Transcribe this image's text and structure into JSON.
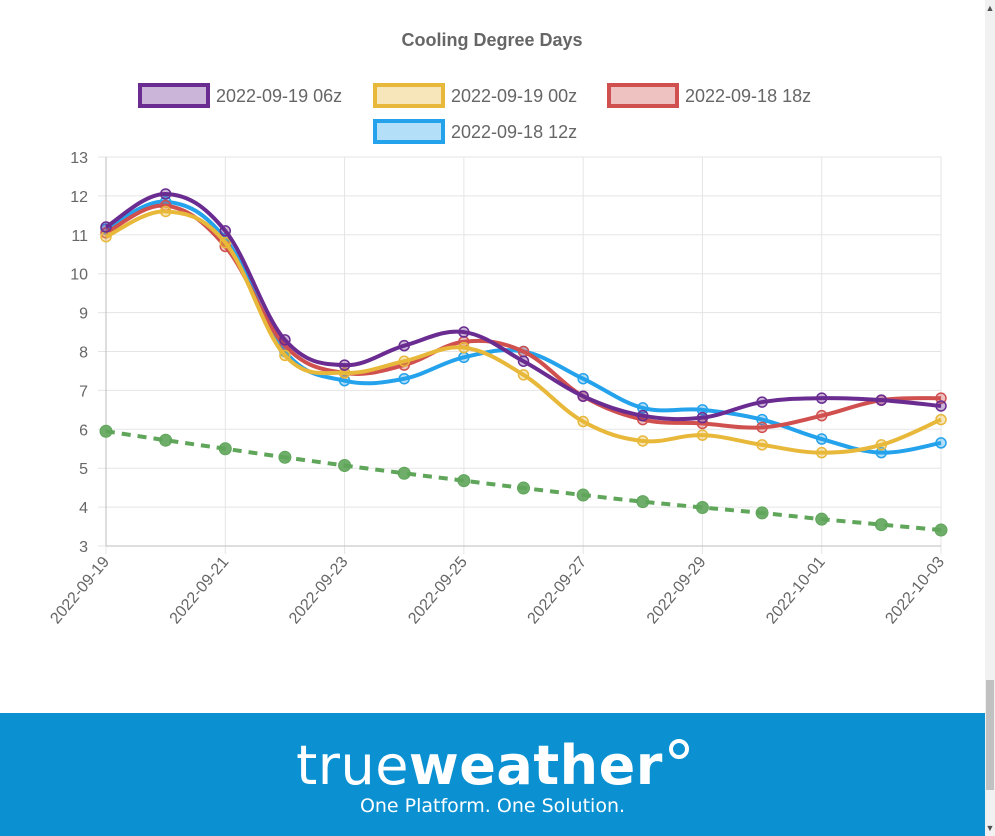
{
  "chart_data": {
    "type": "line",
    "title": "Cooling Degree Days",
    "x": [
      "2022-09-19",
      "2022-09-20",
      "2022-09-21",
      "2022-09-22",
      "2022-09-23",
      "2022-09-24",
      "2022-09-25",
      "2022-09-26",
      "2022-09-27",
      "2022-09-28",
      "2022-09-29",
      "2022-09-30",
      "2022-10-01",
      "2022-10-02",
      "2022-10-03"
    ],
    "x_tick_labels": [
      "2022-09-19",
      "2022-09-21",
      "2022-09-23",
      "2022-09-25",
      "2022-09-27",
      "2022-09-29",
      "2022-10-01",
      "2022-10-03"
    ],
    "ylim": [
      3,
      13
    ],
    "y_ticks": [
      "3",
      "4",
      "5",
      "6",
      "7",
      "8",
      "9",
      "10",
      "11",
      "12",
      "13"
    ],
    "grid": true,
    "legend_position": "top",
    "series": [
      {
        "name": "2022-09-19 06z",
        "color": "#6a2c91",
        "fill": "rgba(106,44,145,0.35)",
        "values": [
          11.2,
          12.05,
          11.1,
          8.3,
          7.65,
          8.15,
          8.5,
          7.75,
          6.85,
          6.35,
          6.3,
          6.7,
          6.8,
          6.75,
          6.6
        ]
      },
      {
        "name": "2022-09-19 00z",
        "color": "#e8b83a",
        "fill": "rgba(232,184,58,0.35)",
        "values": [
          10.95,
          11.6,
          10.8,
          7.9,
          7.45,
          7.75,
          8.1,
          7.4,
          6.2,
          5.7,
          5.85,
          5.6,
          5.4,
          5.6,
          6.25
        ]
      },
      {
        "name": "2022-09-18 18z",
        "color": "#d0504f",
        "fill": "rgba(208,80,79,0.35)",
        "values": [
          11.05,
          11.75,
          10.7,
          8.15,
          7.45,
          7.65,
          8.25,
          8.0,
          6.85,
          6.25,
          6.15,
          6.05,
          6.35,
          6.75,
          6.8
        ]
      },
      {
        "name": "2022-09-18 12z",
        "color": "#24a2ec",
        "fill": "rgba(36,162,236,0.35)",
        "values": [
          11.15,
          11.85,
          10.9,
          8.0,
          7.25,
          7.3,
          7.85,
          8.0,
          7.3,
          6.55,
          6.5,
          6.25,
          5.75,
          5.4,
          5.65
        ]
      },
      {
        "name": "",
        "color": "#5fa55a",
        "fill": "rgba(95,165,90,0.9)",
        "dashed": true,
        "values": [
          5.95,
          5.72,
          5.5,
          5.28,
          5.07,
          4.87,
          4.68,
          4.49,
          4.31,
          4.14,
          3.99,
          3.85,
          3.69,
          3.55,
          3.41
        ]
      }
    ]
  },
  "banner": {
    "brand_true": "true",
    "brand_weather": "weather",
    "tagline": "One Platform. One Solution.",
    "background_color": "#0b90d1"
  },
  "scrollbar": {
    "up_icon": "▲",
    "down_icon": "▼"
  }
}
